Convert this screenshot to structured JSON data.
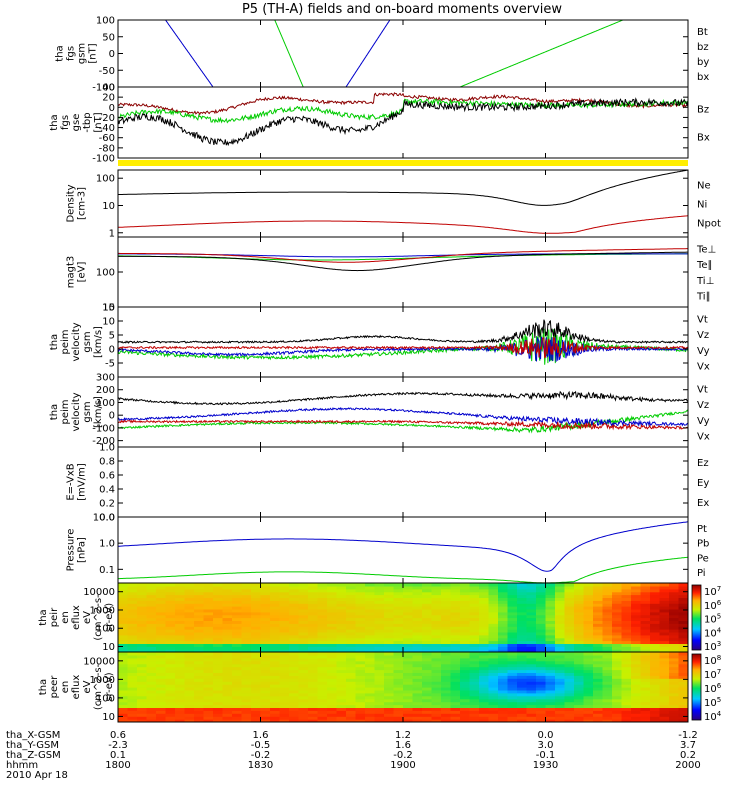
{
  "title": "P5 (TH-A) fields and on-board moments overview",
  "date": "2010 Apr 18",
  "time_axis": {
    "start": "1800",
    "end": "2000",
    "ticks": [
      "1800",
      "1830",
      "1900",
      "1930",
      "2000"
    ]
  },
  "ephemeris": [
    {
      "label": "tha_X-GSM",
      "values": [
        "0.6",
        "1.6",
        "1.2",
        "0.0",
        "-1.2"
      ]
    },
    {
      "label": "tha_Y-GSM",
      "values": [
        "-2.3",
        "-0.5",
        "1.6",
        "3.0",
        "3.7"
      ]
    },
    {
      "label": "tha_Z-GSM",
      "values": [
        "0.1",
        "-0.2",
        "-0.2",
        "-0.1",
        "0.2"
      ]
    },
    {
      "label": "hhmm",
      "values": [
        "1800",
        "1830",
        "1900",
        "1930",
        "2000"
      ]
    }
  ],
  "colors": {
    "black": "#000000",
    "red": "#c00000",
    "darkred": "#8b0000",
    "green": "#00cc00",
    "blue": "#0000cc",
    "yellow": "#ffee00"
  },
  "chart_data": [
    {
      "id": "fgs_gsm",
      "type": "line",
      "ylabel": [
        "tha",
        "fgs",
        "gsm",
        "[nT]"
      ],
      "ylim": [
        -100,
        100
      ],
      "yticks": [
        "100",
        "50",
        "0",
        "-50",
        "-100"
      ],
      "legend": [
        {
          "name": "Bt",
          "color": "#000000"
        },
        {
          "name": "bz",
          "color": "#c00000"
        },
        {
          "name": "by",
          "color": "#00cc00"
        },
        {
          "name": "bx",
          "color": "#0000cc"
        }
      ]
    },
    {
      "id": "fgs_gse",
      "type": "line",
      "ylabel": [
        "tha",
        "fgs",
        "gse",
        "-tbp",
        "[nT]"
      ],
      "ylim": [
        -100,
        40
      ],
      "yticks": [
        "40",
        "20",
        "0",
        "-20",
        "-40",
        "-60",
        "-80",
        "-100"
      ],
      "legend": [
        {
          "name": "Bz",
          "color": "#8b0000"
        },
        {
          "name": "Bx",
          "color": "#00cc00"
        }
      ]
    },
    {
      "id": "density",
      "type": "line",
      "ylabel": [
        "Density",
        "[cm-3]"
      ],
      "scale": "log",
      "ylim": [
        0.7,
        200
      ],
      "yticks": [
        "100",
        "10",
        "1"
      ],
      "legend": [
        {
          "name": "Ne",
          "color": "#c00000"
        },
        {
          "name": "Ni",
          "color": "#000000"
        },
        {
          "name": "Npot",
          "color": "#0000cc"
        }
      ]
    },
    {
      "id": "temperature",
      "type": "line",
      "ylabel": [
        "magt3",
        "[eV]"
      ],
      "scale": "log",
      "ylim": [
        10,
        1000
      ],
      "yticks": [
        "100",
        "10"
      ],
      "legend": [
        {
          "name": "Te⊥",
          "color": "#c00000"
        },
        {
          "name": "Te∥",
          "color": "#000000"
        },
        {
          "name": "Ti⊥",
          "color": "#0000cc"
        },
        {
          "name": "Ti∥",
          "color": "#00cc00"
        }
      ]
    },
    {
      "id": "velocity_e",
      "type": "line",
      "ylabel": [
        "tha",
        "peim",
        "velocity",
        "gsm",
        "[km/s]"
      ],
      "ylim": [
        -10,
        15
      ],
      "yticks": [
        "15",
        "10",
        "5",
        "0",
        "-5"
      ],
      "legend": [
        {
          "name": "Vt",
          "color": "#000000"
        },
        {
          "name": "Vz",
          "color": "#c00000"
        },
        {
          "name": "Vy",
          "color": "#00cc00"
        },
        {
          "name": "Vx",
          "color": "#0000cc"
        }
      ]
    },
    {
      "id": "velocity_i",
      "type": "line",
      "ylabel": [
        "tha",
        "peim",
        "velocity",
        "gsm",
        "[km/s]"
      ],
      "ylim": [
        -250,
        300
      ],
      "yticks": [
        "300",
        "200",
        "100",
        "0",
        "-100",
        "-200"
      ],
      "legend": [
        {
          "name": "Vt",
          "color": "#000000"
        },
        {
          "name": "Vz",
          "color": "#c00000"
        },
        {
          "name": "Vy",
          "color": "#00cc00"
        },
        {
          "name": "Vx",
          "color": "#0000cc"
        }
      ]
    },
    {
      "id": "efield",
      "type": "line",
      "ylabel": [
        "E=-VxB",
        "[mV/m]"
      ],
      "ylim": [
        0,
        1
      ],
      "yticks": [
        "1.0",
        "0.8",
        "0.6",
        "0.4",
        "0.2",
        "0.0"
      ],
      "legend": [
        {
          "name": "Ez",
          "color": "#c00000"
        },
        {
          "name": "Ey",
          "color": "#00cc00"
        },
        {
          "name": "Ex",
          "color": "#0000cc"
        }
      ]
    },
    {
      "id": "pressure",
      "type": "line",
      "ylabel": [
        "Pressure",
        "[nPa]"
      ],
      "scale": "log",
      "ylim": [
        0.03,
        10
      ],
      "yticks": [
        "10.0",
        "1.0",
        "0.1"
      ],
      "legend": [
        {
          "name": "Pt",
          "color": "#000000"
        },
        {
          "name": "Pb",
          "color": "#c00000"
        },
        {
          "name": "Pe",
          "color": "#00cc00"
        },
        {
          "name": "Pi",
          "color": "#0000cc"
        }
      ]
    },
    {
      "id": "ion_spec",
      "type": "heatmap",
      "ylabel": [
        "tha",
        "peir",
        "en",
        "eflux",
        "eV",
        "(cm^2-s-",
        "sr-eV)"
      ],
      "scale": "log",
      "ylim": [
        5,
        30000
      ],
      "yticks": [
        "10000",
        "1000",
        "100",
        "10"
      ],
      "colorbar": {
        "min_exp": 2,
        "max_exp": 7,
        "labels": [
          "10^7",
          "10^6",
          "10^5",
          "10^4",
          "10^3"
        ]
      }
    },
    {
      "id": "elec_spec",
      "type": "heatmap",
      "ylabel": [
        "tha",
        "peer",
        "en",
        "eflux",
        "eV",
        "(cm^2-s-",
        "sr-eV)"
      ],
      "scale": "log",
      "ylim": [
        5,
        30000
      ],
      "yticks": [
        "10000",
        "1000",
        "100",
        "10"
      ],
      "colorbar": {
        "min_exp": 3.5,
        "max_exp": 8,
        "labels": [
          "10^8",
          "10^7",
          "10^6",
          "10^5",
          "10^4"
        ]
      }
    }
  ]
}
